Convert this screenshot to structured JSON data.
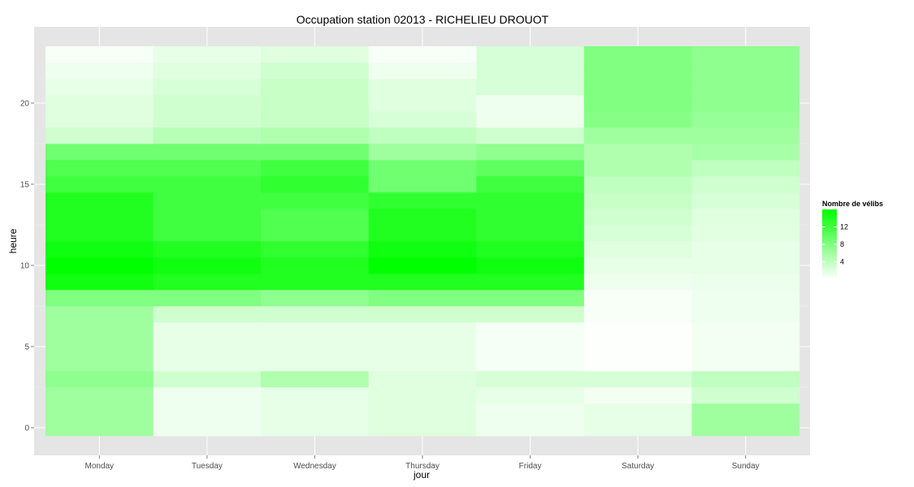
{
  "chart_data": {
    "type": "heatmap",
    "title": "Occupation station 02013 - RICHELIEU DROUOT",
    "xlabel": "jour",
    "ylabel": "heure",
    "categories": [
      "Monday",
      "Tuesday",
      "Wednesday",
      "Thursday",
      "Friday",
      "Saturday",
      "Sunday"
    ],
    "y": [
      0,
      1,
      2,
      3,
      4,
      5,
      6,
      7,
      8,
      9,
      10,
      11,
      12,
      13,
      14,
      15,
      16,
      17,
      18,
      19,
      20,
      21,
      22,
      23
    ],
    "y_ticks": [
      0,
      5,
      10,
      15,
      20
    ],
    "ylim": [
      -0.5,
      23.5
    ],
    "values": [
      [
        6.0,
        1.0,
        1.5,
        2.0,
        1.0,
        1.5,
        6.0
      ],
      [
        6.0,
        1.0,
        1.5,
        2.0,
        1.0,
        1.5,
        6.0
      ],
      [
        6.0,
        1.0,
        1.5,
        2.0,
        1.5,
        0.7,
        3.0
      ],
      [
        7.0,
        3.0,
        5.0,
        2.0,
        2.5,
        2.5,
        4.0
      ],
      [
        6.0,
        1.5,
        1.5,
        1.5,
        0.6,
        0.2,
        0.8
      ],
      [
        6.0,
        1.5,
        1.5,
        1.5,
        0.6,
        0.2,
        0.8
      ],
      [
        6.0,
        1.5,
        1.5,
        1.5,
        0.6,
        0.2,
        0.8
      ],
      [
        6.0,
        3.0,
        3.0,
        3.0,
        3.0,
        0.5,
        1.0
      ],
      [
        8.0,
        8.0,
        7.0,
        8.0,
        8.0,
        0.5,
        1.0
      ],
      [
        15.0,
        14.0,
        14.0,
        14.0,
        14.0,
        1.0,
        1.2
      ],
      [
        16.0,
        15.0,
        14.0,
        16.0,
        15.0,
        1.5,
        1.5
      ],
      [
        15.0,
        14.0,
        13.0,
        15.0,
        14.0,
        2.0,
        1.5
      ],
      [
        14.0,
        12.0,
        11.0,
        14.0,
        13.0,
        2.5,
        1.8
      ],
      [
        14.0,
        12.0,
        11.0,
        14.0,
        13.0,
        3.0,
        2.0
      ],
      [
        14.0,
        12.0,
        12.0,
        13.0,
        13.0,
        3.5,
        2.5
      ],
      [
        12.0,
        12.0,
        13.0,
        9.0,
        12.0,
        4.0,
        3.0
      ],
      [
        11.0,
        11.0,
        12.0,
        9.0,
        10.0,
        5.0,
        4.0
      ],
      [
        9.0,
        9.0,
        9.0,
        6.0,
        7.0,
        5.0,
        5.5
      ],
      [
        3.0,
        4.5,
        5.0,
        4.0,
        3.0,
        6.0,
        6.0
      ],
      [
        2.0,
        3.0,
        3.5,
        2.5,
        1.0,
        7.5,
        6.5
      ],
      [
        2.0,
        3.0,
        3.5,
        2.0,
        1.0,
        8.0,
        7.0
      ],
      [
        1.5,
        2.5,
        3.5,
        2.0,
        2.5,
        8.0,
        7.0
      ],
      [
        1.0,
        2.0,
        3.0,
        1.0,
        2.5,
        8.0,
        7.0
      ],
      [
        0.5,
        1.5,
        2.0,
        0.5,
        2.5,
        8.0,
        7.0
      ]
    ],
    "color_range": [
      0,
      16
    ],
    "color_low": "#ffffff",
    "color_high": "#00ff00",
    "legend": {
      "title": "Nombre de vélibs",
      "ticks": [
        4,
        8,
        12
      ],
      "placement": "right"
    },
    "grid": true,
    "panel_background": "#e5e5e5",
    "grid_color": "#ffffff"
  }
}
